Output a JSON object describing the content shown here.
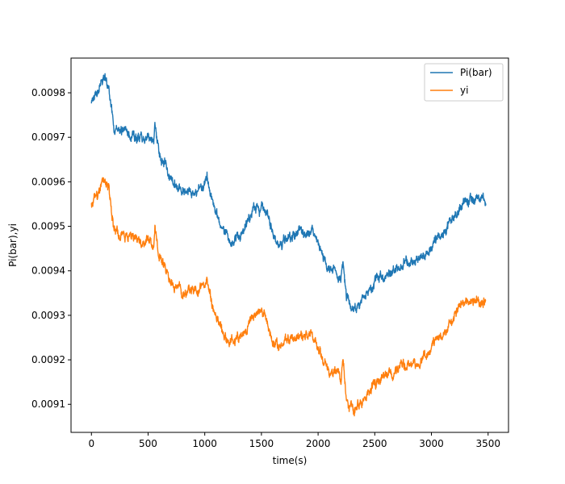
{
  "chart_data": {
    "type": "line",
    "title": "",
    "xlabel": "time(s)",
    "ylabel": "Pi(bar),yi",
    "xlim": [
      -180,
      3680
    ],
    "ylim": [
      0.009037,
      0.009878
    ],
    "grid": false,
    "legend_position": "top-right",
    "x_ticks": [
      0,
      500,
      1000,
      1500,
      2000,
      2500,
      3000,
      3500
    ],
    "x_tick_labels": [
      "0",
      "500",
      "1000",
      "1500",
      "2000",
      "2500",
      "3000",
      "3500"
    ],
    "y_ticks": [
      0.0091,
      0.0092,
      0.0093,
      0.0094,
      0.0095,
      0.0096,
      0.0097,
      0.0098
    ],
    "y_tick_labels": [
      "0.0091",
      "0.0092",
      "0.0093",
      "0.0094",
      "0.0095",
      "0.0096",
      "0.0097",
      "0.0098"
    ],
    "series": [
      {
        "name": "Pi(bar)",
        "color": "#1f77b4",
        "x": [
          0,
          50,
          100,
          120,
          150,
          200,
          250,
          300,
          350,
          400,
          450,
          500,
          550,
          560,
          600,
          650,
          700,
          750,
          800,
          850,
          900,
          950,
          1000,
          1020,
          1050,
          1100,
          1150,
          1200,
          1250,
          1280,
          1300,
          1350,
          1400,
          1450,
          1500,
          1550,
          1600,
          1650,
          1700,
          1750,
          1800,
          1850,
          1900,
          1950,
          2000,
          2050,
          2100,
          2150,
          2200,
          2220,
          2250,
          2300,
          2350,
          2400,
          2450,
          2500,
          2550,
          2600,
          2650,
          2700,
          2750,
          2800,
          2850,
          2900,
          2950,
          3000,
          3050,
          3100,
          3150,
          3200,
          3250,
          3300,
          3350,
          3400,
          3450,
          3480
        ],
        "values": [
          0.009785,
          0.0098,
          0.009825,
          0.009832,
          0.00981,
          0.00973,
          0.009715,
          0.00971,
          0.009705,
          0.0097,
          0.009695,
          0.0097,
          0.00969,
          0.00973,
          0.00966,
          0.00964,
          0.009605,
          0.00959,
          0.009582,
          0.00958,
          0.009575,
          0.00958,
          0.00959,
          0.00962,
          0.00957,
          0.00953,
          0.00949,
          0.00947,
          0.009465,
          0.00948,
          0.00947,
          0.0095,
          0.00952,
          0.009535,
          0.00954,
          0.00952,
          0.00948,
          0.00945,
          0.00947,
          0.009475,
          0.009485,
          0.00949,
          0.009485,
          0.00949,
          0.00946,
          0.00943,
          0.00941,
          0.009405,
          0.00938,
          0.00942,
          0.00934,
          0.00932,
          0.00933,
          0.00934,
          0.009355,
          0.009375,
          0.00939,
          0.009395,
          0.009395,
          0.009405,
          0.00942,
          0.00942,
          0.00942,
          0.009425,
          0.00944,
          0.009455,
          0.00947,
          0.00948,
          0.0095,
          0.00952,
          0.009545,
          0.00956,
          0.009565,
          0.00956,
          0.009565,
          0.00956
        ]
      },
      {
        "name": "yi",
        "color": "#ff7f0e",
        "x": [
          0,
          50,
          100,
          120,
          150,
          200,
          250,
          300,
          350,
          400,
          450,
          500,
          550,
          560,
          600,
          650,
          700,
          750,
          800,
          850,
          900,
          950,
          1000,
          1020,
          1050,
          1100,
          1150,
          1200,
          1250,
          1280,
          1300,
          1350,
          1400,
          1450,
          1500,
          1550,
          1600,
          1650,
          1700,
          1750,
          1800,
          1850,
          1900,
          1950,
          2000,
          2050,
          2100,
          2150,
          2200,
          2220,
          2250,
          2300,
          2350,
          2400,
          2450,
          2500,
          2550,
          2600,
          2650,
          2700,
          2750,
          2800,
          2850,
          2900,
          2950,
          3000,
          3050,
          3100,
          3150,
          3200,
          3250,
          3300,
          3350,
          3400,
          3450,
          3480
        ],
        "values": [
          0.009555,
          0.009565,
          0.00959,
          0.0096,
          0.00958,
          0.0095,
          0.009485,
          0.00948,
          0.009475,
          0.00947,
          0.009465,
          0.00947,
          0.00946,
          0.009495,
          0.00943,
          0.00941,
          0.009375,
          0.00936,
          0.009352,
          0.00935,
          0.009345,
          0.00935,
          0.00936,
          0.00939,
          0.00934,
          0.0093,
          0.00926,
          0.00924,
          0.009235,
          0.00925,
          0.00924,
          0.00927,
          0.00929,
          0.009305,
          0.00931,
          0.00929,
          0.00925,
          0.00922,
          0.00924,
          0.009245,
          0.009255,
          0.00926,
          0.009255,
          0.00926,
          0.00923,
          0.0092,
          0.00918,
          0.009175,
          0.00915,
          0.009195,
          0.00911,
          0.00909,
          0.0091,
          0.00911,
          0.009125,
          0.009145,
          0.00916,
          0.009165,
          0.009165,
          0.009175,
          0.00919,
          0.00919,
          0.00919,
          0.009195,
          0.00921,
          0.009225,
          0.00924,
          0.00925,
          0.00927,
          0.00929,
          0.009315,
          0.00933,
          0.009335,
          0.00933,
          0.009335,
          0.00933
        ]
      }
    ]
  }
}
